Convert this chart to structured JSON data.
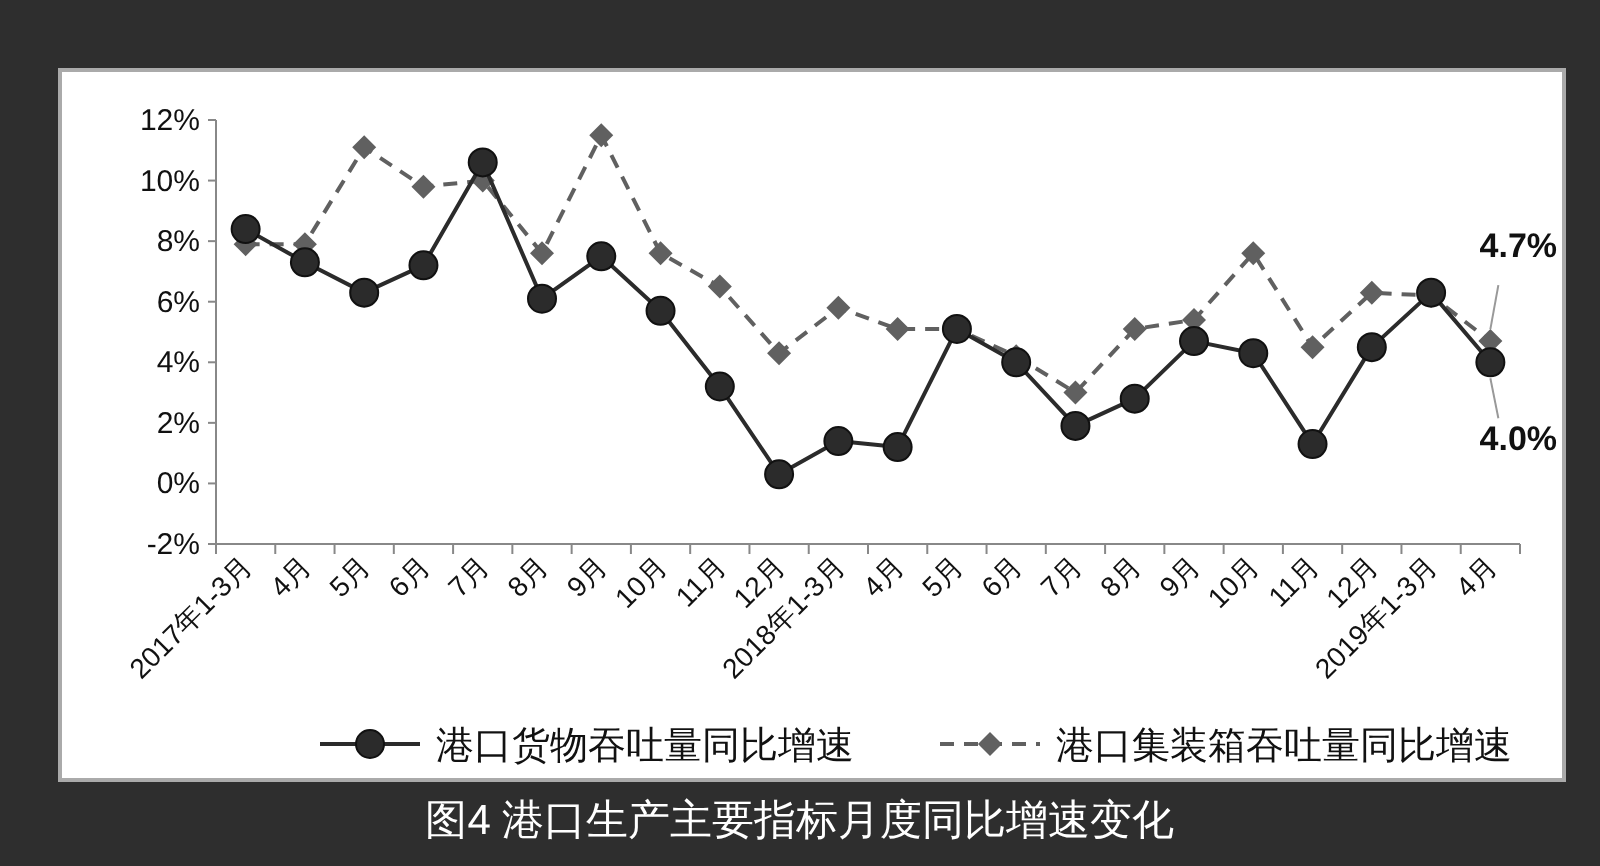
{
  "chart_data": {
    "type": "line",
    "title": "图4 港口生产主要指标月度同比增速变化",
    "categories": [
      "2017年1-3月",
      "4月",
      "5月",
      "6月",
      "7月",
      "8月",
      "9月",
      "10月",
      "11月",
      "12月",
      "2018年1-3月",
      "4月",
      "5月",
      "6月",
      "7月",
      "8月",
      "9月",
      "10月",
      "11月",
      "12月",
      "2019年1-3月",
      "4月"
    ],
    "series": [
      {
        "name": "港口货物吞吐量同比增速",
        "color": "#2b2b2b",
        "marker": "circle",
        "line_style": "solid",
        "values": [
          8.4,
          7.3,
          6.3,
          7.2,
          10.6,
          6.1,
          7.5,
          5.7,
          3.2,
          0.3,
          1.4,
          1.2,
          5.1,
          4.0,
          1.9,
          2.8,
          4.7,
          4.3,
          1.3,
          4.5,
          6.3,
          4.0
        ],
        "value_labels": [
          null,
          null,
          null,
          null,
          null,
          null,
          null,
          null,
          null,
          null,
          null,
          null,
          null,
          null,
          null,
          null,
          null,
          null,
          null,
          null,
          null,
          "4.0%"
        ]
      },
      {
        "name": "港口集装箱吞吐量同比增速",
        "color": "#606060",
        "marker": "diamond",
        "line_style": "dashed",
        "values": [
          7.9,
          7.9,
          11.1,
          9.8,
          10.0,
          7.6,
          11.5,
          7.6,
          6.5,
          4.3,
          5.8,
          5.1,
          5.1,
          4.2,
          3.0,
          5.1,
          5.4,
          7.6,
          4.5,
          6.3,
          6.2,
          4.7
        ],
        "value_labels": [
          null,
          null,
          null,
          null,
          null,
          null,
          null,
          null,
          null,
          null,
          null,
          null,
          null,
          null,
          null,
          null,
          null,
          null,
          null,
          null,
          null,
          "4.7%"
        ]
      }
    ],
    "ylim": [
      -2,
      12
    ],
    "yticks": [
      {
        "value": -2,
        "label": "-2%"
      },
      {
        "value": 0,
        "label": "0%"
      },
      {
        "value": 2,
        "label": "2%"
      },
      {
        "value": 4,
        "label": "4%"
      },
      {
        "value": 6,
        "label": "6%"
      },
      {
        "value": 8,
        "label": "8%"
      },
      {
        "value": 10,
        "label": "10%"
      },
      {
        "value": 12,
        "label": "12%"
      }
    ],
    "grid": false,
    "legend": "bottom"
  }
}
